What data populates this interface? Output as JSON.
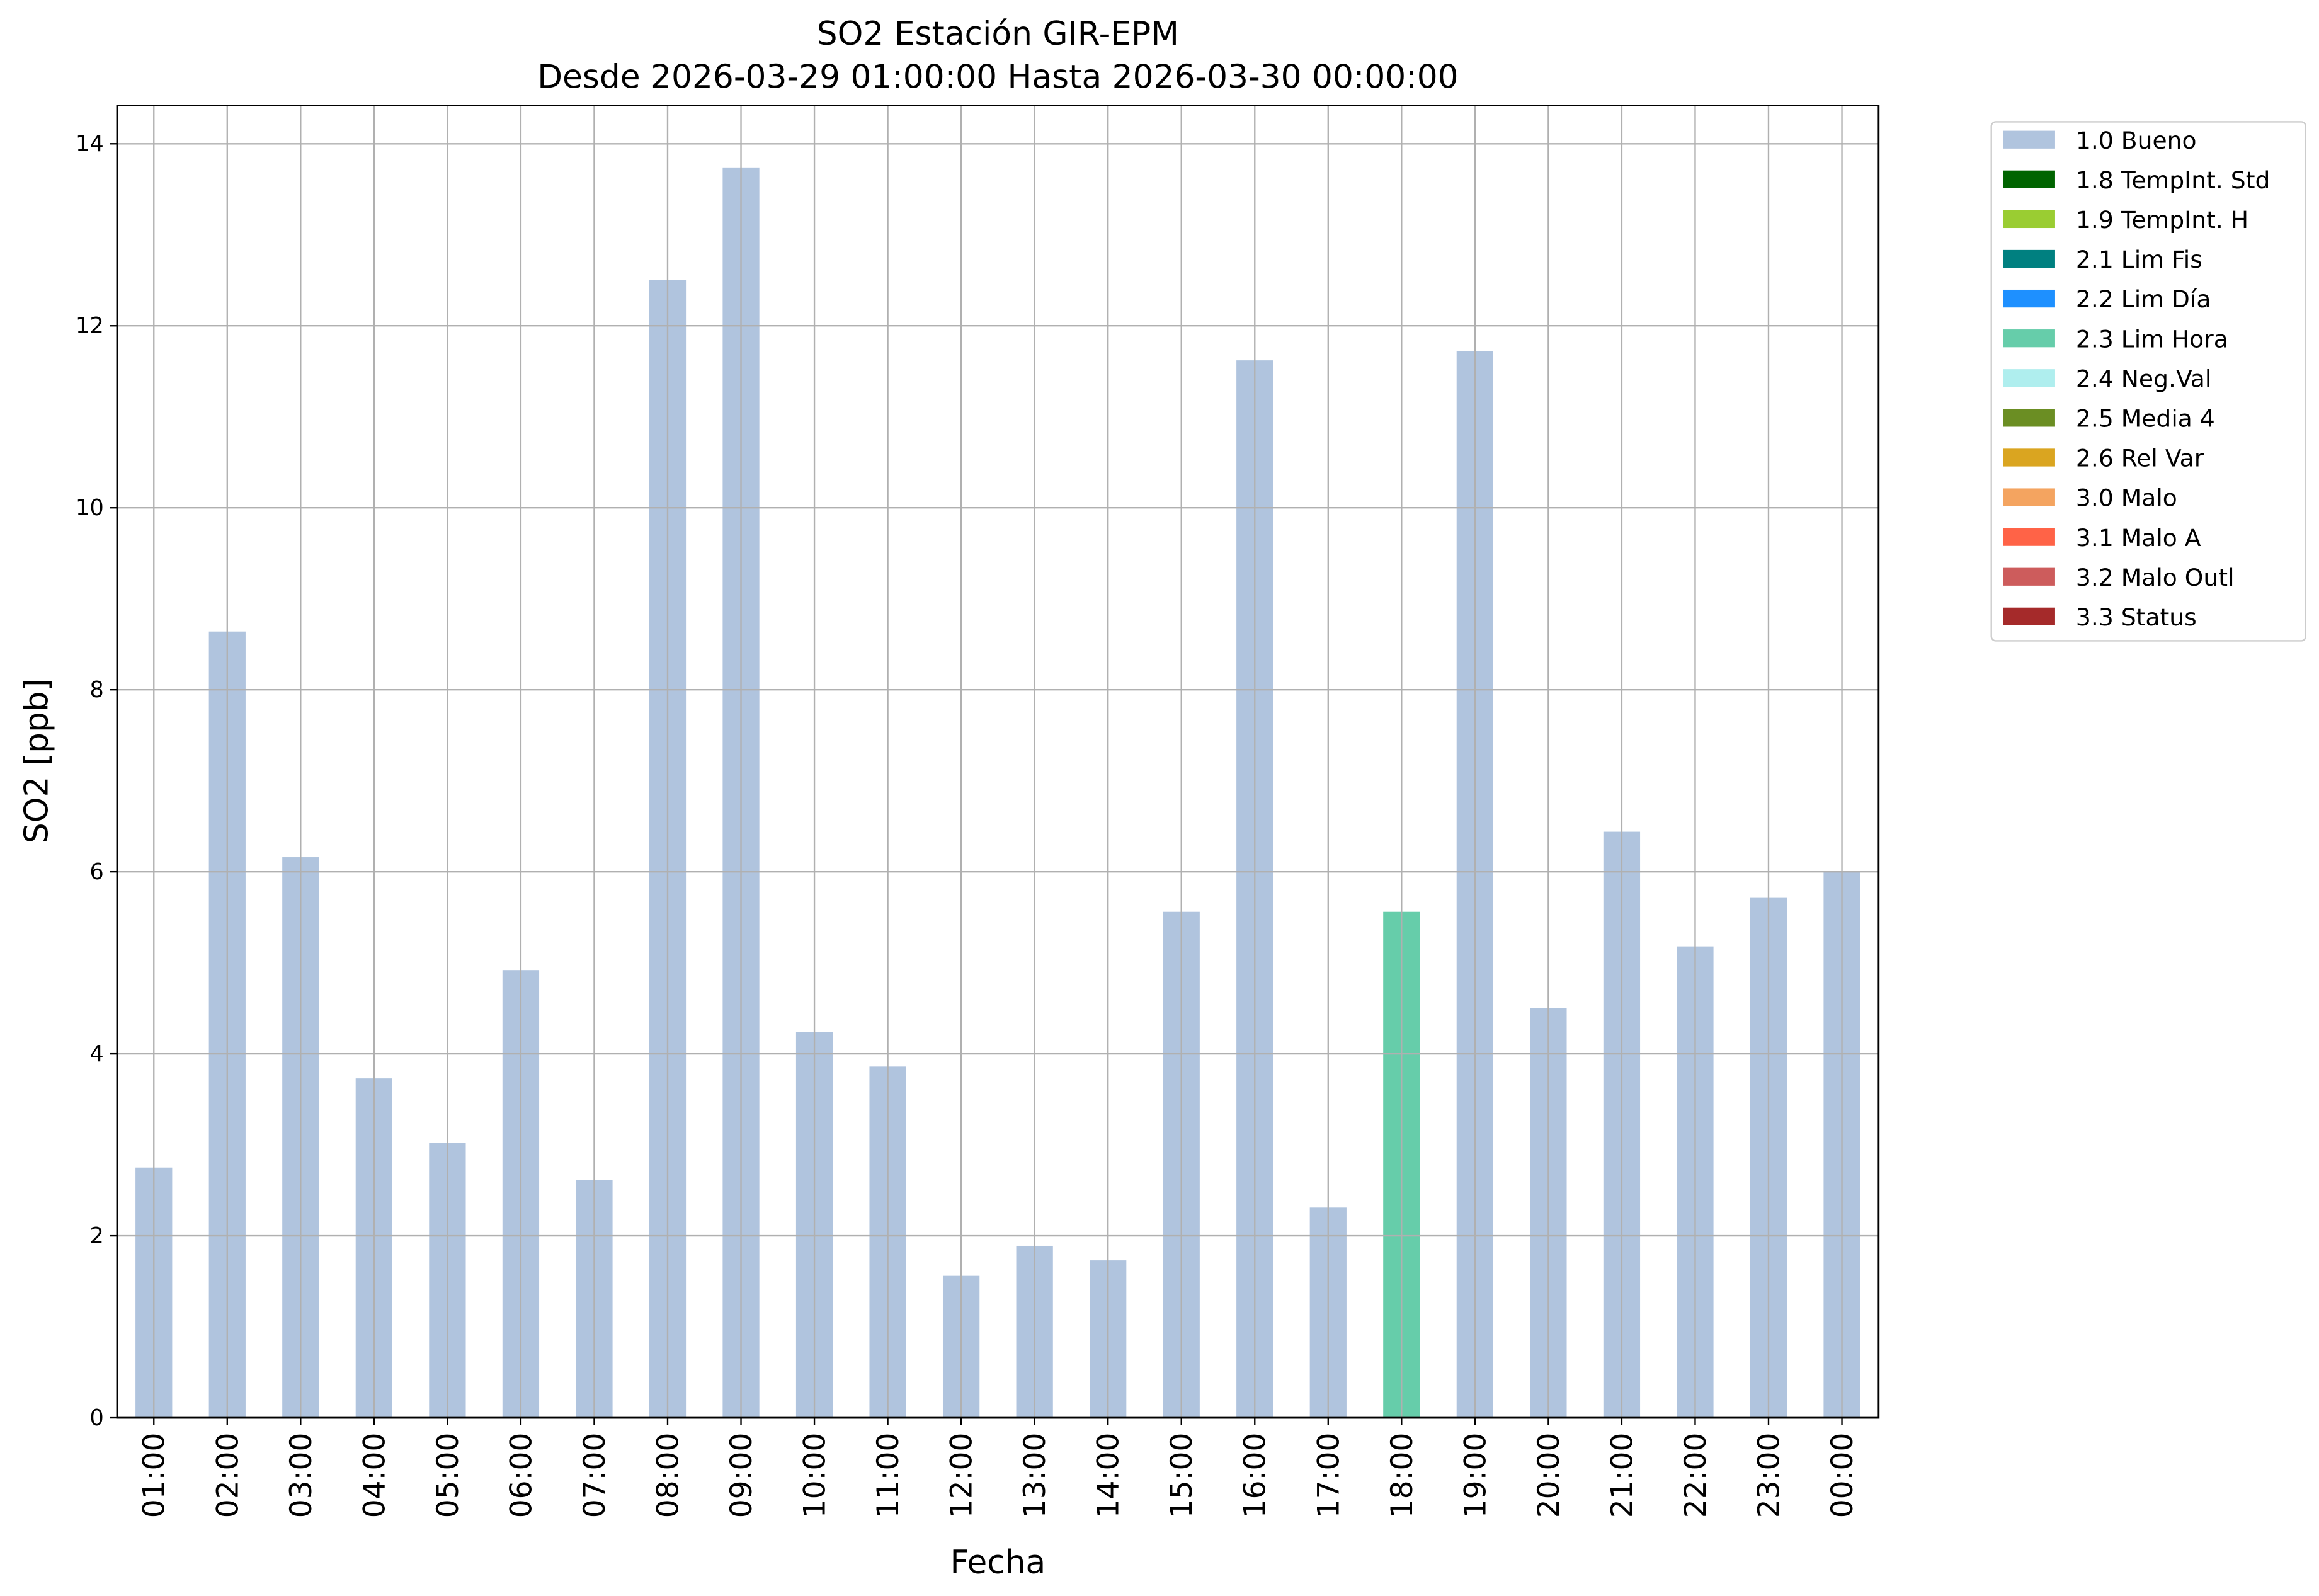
{
  "chart_data": {
    "type": "bar",
    "title": "SO2 Estación GIR-EPM",
    "subtitle": "Desde 2026-03-29 01:00:00 Hasta 2026-03-30 00:00:00",
    "x_label": "Fecha",
    "y_label": "SO2 [ppb]",
    "categories": [
      "01:00",
      "02:00",
      "03:00",
      "04:00",
      "05:00",
      "06:00",
      "07:00",
      "08:00",
      "09:00",
      "10:00",
      "11:00",
      "12:00",
      "13:00",
      "14:00",
      "15:00",
      "16:00",
      "17:00",
      "18:00",
      "19:00",
      "20:00",
      "21:00",
      "22:00",
      "23:00",
      "00:00"
    ],
    "stacked": true,
    "grid": true,
    "legend": "outside-right",
    "ylim": [
      0,
      14.42
    ],
    "yticks": [
      0,
      2,
      4,
      6,
      8,
      10,
      12,
      14
    ],
    "series": [
      {
        "name": "1.0 Bueno",
        "color": "#b0c4de",
        "values": [
          2.75,
          8.64,
          6.16,
          3.73,
          3.02,
          4.92,
          2.61,
          12.5,
          13.74,
          4.24,
          3.86,
          1.56,
          1.89,
          1.73,
          5.56,
          11.62,
          2.31,
          null,
          11.72,
          4.5,
          6.44,
          5.18,
          5.72,
          6.0
        ]
      },
      {
        "name": "1.8 TempInt. Std",
        "color": "#006400",
        "values": [
          null,
          null,
          null,
          null,
          null,
          null,
          null,
          null,
          null,
          null,
          null,
          null,
          null,
          null,
          null,
          null,
          null,
          null,
          null,
          null,
          null,
          null,
          null,
          null
        ]
      },
      {
        "name": "1.9 TempInt. H",
        "color": "#9acd32",
        "values": [
          null,
          null,
          null,
          null,
          null,
          null,
          null,
          null,
          null,
          null,
          null,
          null,
          null,
          null,
          null,
          null,
          null,
          null,
          null,
          null,
          null,
          null,
          null,
          null
        ]
      },
      {
        "name": "2.1 Lim Fis",
        "color": "#008080",
        "values": [
          null,
          null,
          null,
          null,
          null,
          null,
          null,
          null,
          null,
          null,
          null,
          null,
          null,
          null,
          null,
          null,
          null,
          null,
          null,
          null,
          null,
          null,
          null,
          null
        ]
      },
      {
        "name": "2.2 Lim Día",
        "color": "#1e90ff",
        "values": [
          null,
          null,
          null,
          null,
          null,
          null,
          null,
          null,
          null,
          null,
          null,
          null,
          null,
          null,
          null,
          null,
          null,
          null,
          null,
          null,
          null,
          null,
          null,
          null
        ]
      },
      {
        "name": "2.3 Lim Hora",
        "color": "#66cdaa",
        "values": [
          null,
          null,
          null,
          null,
          null,
          null,
          null,
          null,
          null,
          null,
          null,
          null,
          null,
          null,
          null,
          null,
          null,
          5.56,
          null,
          null,
          null,
          null,
          null,
          null
        ]
      },
      {
        "name": "2.4 Neg.Val",
        "color": "#afeeee",
        "values": [
          null,
          null,
          null,
          null,
          null,
          null,
          null,
          null,
          null,
          null,
          null,
          null,
          null,
          null,
          null,
          null,
          null,
          null,
          null,
          null,
          null,
          null,
          null,
          null
        ]
      },
      {
        "name": "2.5 Media 4",
        "color": "#6b8e23",
        "values": [
          null,
          null,
          null,
          null,
          null,
          null,
          null,
          null,
          null,
          null,
          null,
          null,
          null,
          null,
          null,
          null,
          null,
          null,
          null,
          null,
          null,
          null,
          null,
          null
        ]
      },
      {
        "name": "2.6 Rel Var",
        "color": "#daa520",
        "values": [
          null,
          null,
          null,
          null,
          null,
          null,
          null,
          null,
          null,
          null,
          null,
          null,
          null,
          null,
          null,
          null,
          null,
          null,
          null,
          null,
          null,
          null,
          null,
          null
        ]
      },
      {
        "name": "3.0 Malo",
        "color": "#f4a460",
        "values": [
          null,
          null,
          null,
          null,
          null,
          null,
          null,
          null,
          null,
          null,
          null,
          null,
          null,
          null,
          null,
          null,
          null,
          null,
          null,
          null,
          null,
          null,
          null,
          null
        ]
      },
      {
        "name": "3.1 Malo A",
        "color": "#ff6347",
        "values": [
          null,
          null,
          null,
          null,
          null,
          null,
          null,
          null,
          null,
          null,
          null,
          null,
          null,
          null,
          null,
          null,
          null,
          null,
          null,
          null,
          null,
          null,
          null,
          null
        ]
      },
      {
        "name": "3.2 Malo Outl",
        "color": "#cd5c5c",
        "values": [
          null,
          null,
          null,
          null,
          null,
          null,
          null,
          null,
          null,
          null,
          null,
          null,
          null,
          null,
          null,
          null,
          null,
          null,
          null,
          null,
          null,
          null,
          null,
          null
        ]
      },
      {
        "name": "3.3 Status",
        "color": "#a52a2a",
        "values": [
          null,
          null,
          null,
          null,
          null,
          null,
          null,
          null,
          null,
          null,
          null,
          null,
          null,
          null,
          null,
          null,
          null,
          null,
          null,
          null,
          null,
          null,
          null,
          null
        ]
      }
    ]
  }
}
